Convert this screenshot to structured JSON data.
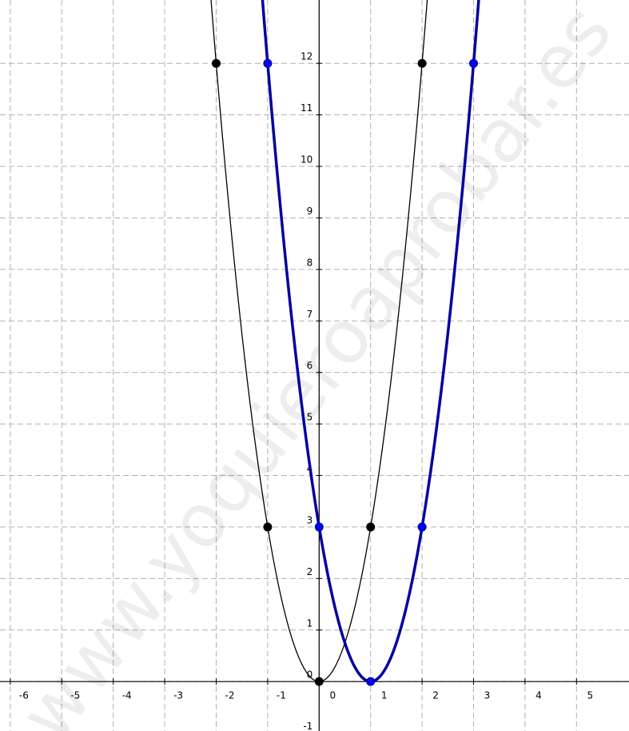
{
  "chart_data": {
    "type": "function",
    "watermark": "www.yoquieroaprobar.es",
    "xlim": [
      -6.2,
      6.02
    ],
    "ylim": [
      -0.96,
      13.23
    ],
    "xticks": [
      -6,
      -5,
      -4,
      -3,
      -2,
      -1,
      0,
      1,
      2,
      3,
      4,
      5
    ],
    "yticks": [
      -1,
      0,
      1,
      2,
      3,
      4,
      5,
      6,
      7,
      8,
      9,
      10,
      11,
      12
    ],
    "grid": true,
    "series": [
      {
        "color": "#000000",
        "width": 1.3,
        "x": [
          -2,
          -1,
          0,
          1,
          2
        ],
        "values": [
          12,
          3,
          0,
          3,
          12
        ]
      },
      {
        "color": "#0000a0",
        "width": 3.5,
        "x": [
          -1,
          0,
          1,
          2,
          3
        ],
        "values": [
          12,
          3,
          0,
          3,
          12
        ]
      }
    ]
  }
}
